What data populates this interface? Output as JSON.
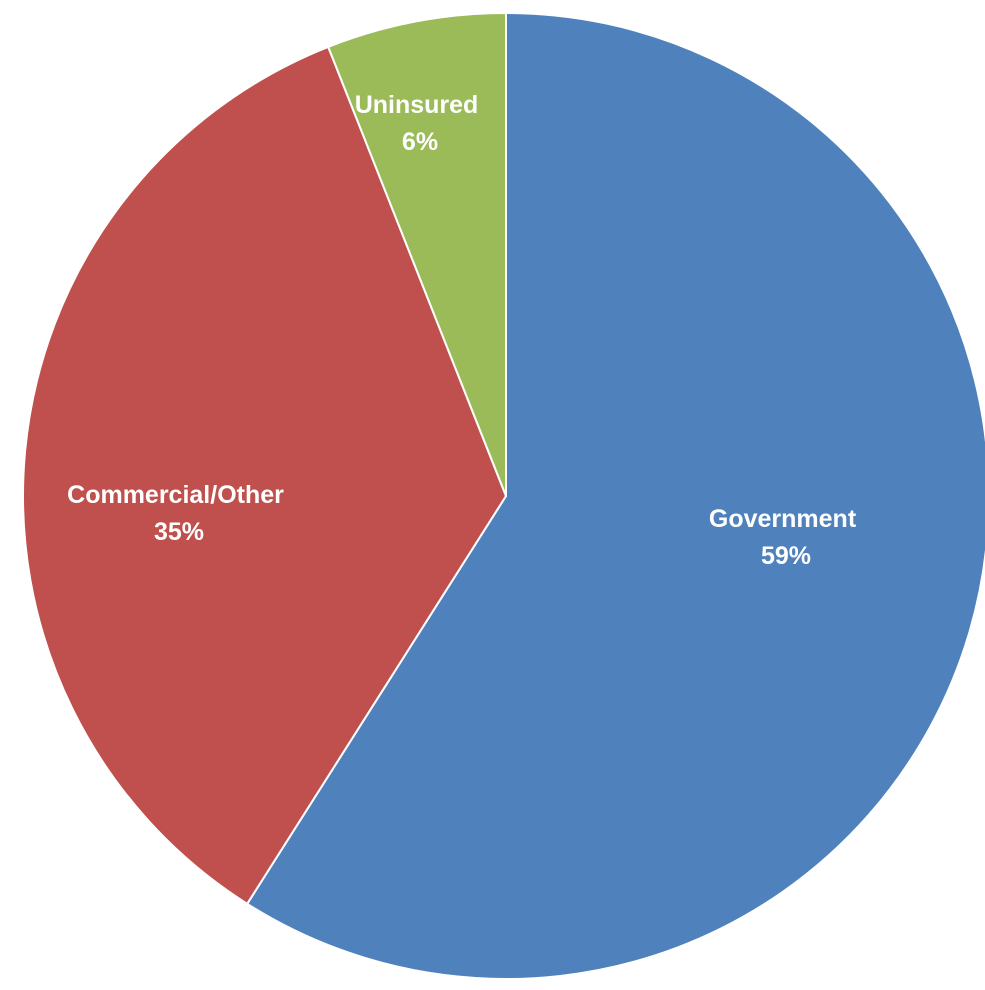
{
  "chart_data": {
    "type": "pie",
    "title": "",
    "start_angle_deg": 0,
    "direction": "clockwise",
    "slices": [
      {
        "label": "Government",
        "value": 59,
        "value_label": "59%",
        "color": "#4f81bd"
      },
      {
        "label": "Commercial/Other",
        "value": 35,
        "value_label": "35%",
        "color": "#c0504d"
      },
      {
        "label": "Uninsured",
        "value": 6,
        "value_label": "6%",
        "color": "#9bbb59"
      }
    ]
  }
}
